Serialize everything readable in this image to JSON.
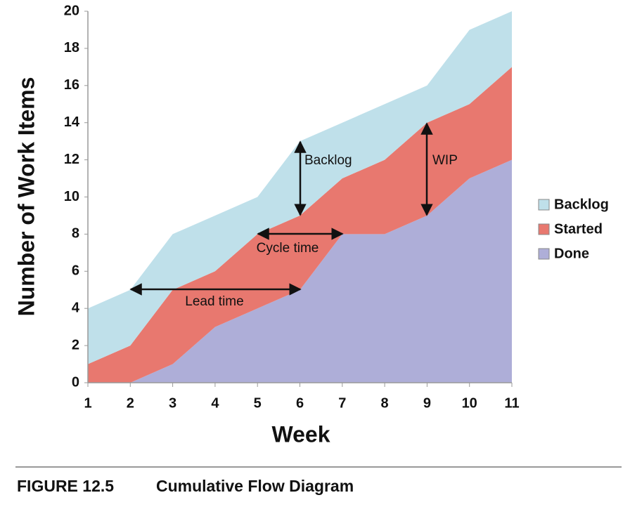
{
  "chart_data": {
    "type": "area",
    "stacked": true,
    "x_label": "Week",
    "y_label": "Number of Work Items",
    "x": [
      1,
      2,
      3,
      4,
      5,
      6,
      7,
      8,
      9,
      10,
      11
    ],
    "series": [
      {
        "name": "Backlog",
        "color": "#bfe0ea",
        "values": [
          3,
          3,
          3,
          3,
          2,
          4,
          3,
          3,
          2,
          4,
          3
        ]
      },
      {
        "name": "Started",
        "color": "#e8786f",
        "values": [
          1,
          2,
          4,
          3,
          4,
          4,
          3,
          4,
          5,
          4,
          5
        ]
      },
      {
        "name": "Done",
        "color": "#aeaed8",
        "values": [
          0,
          0,
          1,
          3,
          4,
          5,
          8,
          8,
          9,
          11,
          12
        ]
      }
    ],
    "xlim": [
      1,
      11
    ],
    "xticks": [
      1,
      2,
      3,
      4,
      5,
      6,
      7,
      8,
      9,
      10,
      11
    ],
    "ylim": [
      0,
      20
    ],
    "yticks": [
      0,
      2,
      4,
      6,
      8,
      10,
      12,
      14,
      16,
      18,
      20
    ],
    "grid": false,
    "legend": "right",
    "annotations": [
      "Backlog",
      "WIP",
      "Cycle time",
      "Lead time"
    ]
  },
  "caption": {
    "label": "FIGURE 12.5",
    "title": "Cumulative Flow Diagram"
  }
}
